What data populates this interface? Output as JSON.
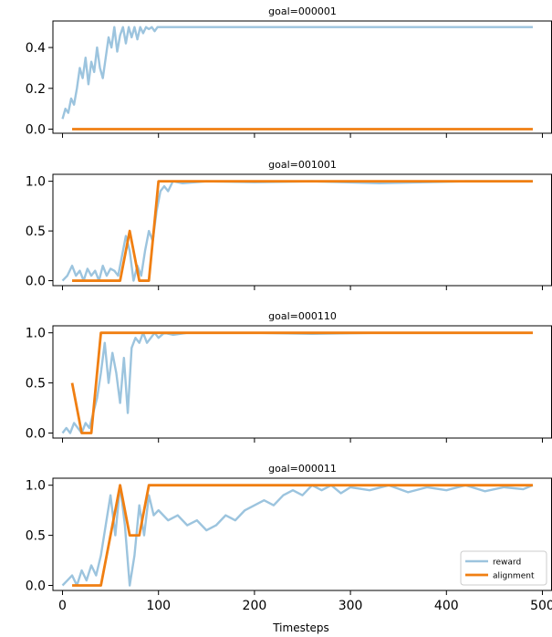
{
  "chart_data": [
    {
      "type": "line",
      "title": "goal=000001",
      "xlim": [
        -10,
        510
      ],
      "ylim": [
        -0.02,
        0.53
      ],
      "yticks": [
        0.0,
        0.2,
        0.4
      ],
      "ytick_labels": [
        "0.0",
        "0.2",
        "0.4"
      ],
      "xticks": [
        0,
        100,
        200,
        300,
        400,
        500
      ],
      "series": [
        {
          "name": "reward",
          "color": "#9cc4de",
          "x": [
            0,
            3,
            6,
            9,
            12,
            15,
            18,
            21,
            24,
            27,
            30,
            33,
            36,
            39,
            42,
            45,
            48,
            51,
            54,
            57,
            60,
            63,
            66,
            69,
            72,
            75,
            78,
            81,
            84,
            87,
            90,
            93,
            96,
            99,
            102,
            105,
            110,
            130,
            160,
            200,
            260,
            330,
            420,
            490
          ],
          "y": [
            0.05,
            0.1,
            0.08,
            0.15,
            0.12,
            0.2,
            0.3,
            0.25,
            0.35,
            0.22,
            0.33,
            0.28,
            0.4,
            0.3,
            0.25,
            0.35,
            0.45,
            0.4,
            0.5,
            0.38,
            0.46,
            0.5,
            0.42,
            0.5,
            0.45,
            0.5,
            0.44,
            0.5,
            0.47,
            0.5,
            0.49,
            0.5,
            0.48,
            0.5,
            0.5,
            0.5,
            0.5,
            0.5,
            0.5,
            0.5,
            0.5,
            0.5,
            0.5,
            0.5
          ]
        },
        {
          "name": "alignment",
          "color": "#f07f12",
          "x": [
            10,
            490
          ],
          "y": [
            0.0,
            0.0
          ]
        }
      ]
    },
    {
      "type": "line",
      "title": "goal=001001",
      "xlim": [
        -10,
        510
      ],
      "ylim": [
        -0.05,
        1.07
      ],
      "yticks": [
        0.0,
        0.5,
        1.0
      ],
      "ytick_labels": [
        "0.0",
        "0.5",
        "1.0"
      ],
      "xticks": [
        0,
        100,
        200,
        300,
        400,
        500
      ],
      "series": [
        {
          "name": "reward",
          "color": "#9cc4de",
          "x": [
            0,
            5,
            10,
            14,
            18,
            22,
            26,
            30,
            34,
            38,
            42,
            46,
            50,
            54,
            58,
            62,
            66,
            70,
            74,
            78,
            82,
            86,
            90,
            94,
            98,
            102,
            106,
            110,
            115,
            125,
            150,
            200,
            260,
            330,
            420,
            490
          ],
          "y": [
            0.0,
            0.05,
            0.15,
            0.05,
            0.1,
            0.0,
            0.12,
            0.05,
            0.1,
            0.0,
            0.15,
            0.05,
            0.12,
            0.1,
            0.05,
            0.25,
            0.45,
            0.3,
            0.0,
            0.15,
            0.05,
            0.3,
            0.5,
            0.4,
            0.7,
            0.9,
            0.95,
            0.9,
            1.0,
            0.98,
            1.0,
            0.99,
            1.0,
            0.98,
            1.0,
            1.0
          ]
        },
        {
          "name": "alignment",
          "color": "#f07f12",
          "x": [
            10,
            60,
            70,
            80,
            90,
            100,
            490
          ],
          "y": [
            0.0,
            0.0,
            0.5,
            0.0,
            0.0,
            1.0,
            1.0
          ]
        }
      ]
    },
    {
      "type": "line",
      "title": "goal=000110",
      "xlim": [
        -10,
        510
      ],
      "ylim": [
        -0.05,
        1.07
      ],
      "yticks": [
        0.0,
        0.5,
        1.0
      ],
      "ytick_labels": [
        "0.0",
        "0.5",
        "1.0"
      ],
      "xticks": [
        0,
        100,
        200,
        300,
        400,
        500
      ],
      "series": [
        {
          "name": "reward",
          "color": "#9cc4de",
          "x": [
            0,
            4,
            8,
            12,
            16,
            20,
            24,
            28,
            32,
            36,
            40,
            44,
            48,
            52,
            56,
            60,
            64,
            68,
            72,
            76,
            80,
            84,
            88,
            92,
            96,
            100,
            106,
            115,
            130,
            160,
            200,
            260,
            330,
            420,
            490
          ],
          "y": [
            0.0,
            0.05,
            0.0,
            0.1,
            0.05,
            0.0,
            0.1,
            0.05,
            0.2,
            0.35,
            0.6,
            0.9,
            0.5,
            0.8,
            0.6,
            0.3,
            0.75,
            0.2,
            0.85,
            0.95,
            0.9,
            1.0,
            0.9,
            0.95,
            1.0,
            0.95,
            1.0,
            0.98,
            1.0,
            1.0,
            1.0,
            0.99,
            1.0,
            1.0,
            1.0
          ]
        },
        {
          "name": "alignment",
          "color": "#f07f12",
          "x": [
            10,
            20,
            30,
            40,
            490
          ],
          "y": [
            0.5,
            0.0,
            0.0,
            1.0,
            1.0
          ]
        }
      ]
    },
    {
      "type": "line",
      "title": "goal=000011",
      "xlim": [
        -10,
        510
      ],
      "ylim": [
        -0.05,
        1.07
      ],
      "yticks": [
        0.0,
        0.5,
        1.0
      ],
      "ytick_labels": [
        "0.0",
        "0.5",
        "1.0"
      ],
      "xticks": [
        0,
        100,
        200,
        300,
        400,
        500
      ],
      "xtick_labels": [
        "0",
        "100",
        "200",
        "300",
        "400",
        "500"
      ],
      "xlabel": "Timesteps",
      "legend": "lower-right",
      "series": [
        {
          "name": "reward",
          "color": "#9cc4de",
          "x": [
            0,
            5,
            10,
            15,
            20,
            25,
            30,
            35,
            40,
            45,
            50,
            55,
            60,
            65,
            70,
            75,
            80,
            85,
            90,
            95,
            100,
            110,
            120,
            130,
            140,
            150,
            160,
            170,
            180,
            190,
            200,
            210,
            220,
            230,
            240,
            250,
            260,
            270,
            280,
            290,
            300,
            320,
            340,
            360,
            380,
            400,
            420,
            440,
            460,
            480,
            490
          ],
          "y": [
            0.0,
            0.05,
            0.1,
            0.0,
            0.15,
            0.05,
            0.2,
            0.1,
            0.3,
            0.6,
            0.9,
            0.5,
            1.0,
            0.6,
            0.0,
            0.3,
            0.8,
            0.5,
            0.9,
            0.7,
            0.75,
            0.65,
            0.7,
            0.6,
            0.65,
            0.55,
            0.6,
            0.7,
            0.65,
            0.75,
            0.8,
            0.85,
            0.8,
            0.9,
            0.95,
            0.9,
            1.0,
            0.95,
            1.0,
            0.92,
            0.98,
            0.95,
            1.0,
            0.93,
            0.98,
            0.95,
            1.0,
            0.94,
            0.98,
            0.96,
            1.0
          ]
        },
        {
          "name": "alignment",
          "color": "#f07f12",
          "x": [
            10,
            40,
            50,
            60,
            70,
            80,
            90,
            490
          ],
          "y": [
            0.0,
            0.0,
            0.5,
            1.0,
            0.5,
            0.5,
            1.0,
            1.0
          ]
        }
      ]
    }
  ]
}
